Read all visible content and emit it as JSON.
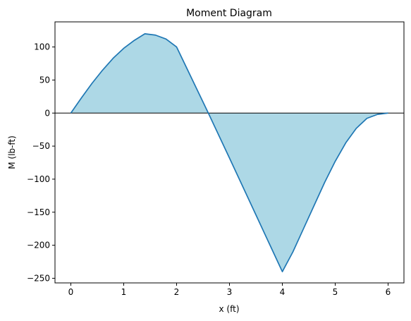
{
  "chart_data": {
    "type": "area",
    "title": "Moment Diagram",
    "xlabel": "x (ft)",
    "ylabel": "M (lb-ft)",
    "xlim": [
      -0.3,
      6.3
    ],
    "ylim": [
      -257,
      138
    ],
    "x_ticks": [
      "0",
      "1",
      "2",
      "3",
      "4",
      "5",
      "6"
    ],
    "y_ticks": [
      "100",
      "50",
      "0",
      "−50",
      "−100",
      "−150",
      "−200",
      "−250"
    ],
    "x_tick_values": [
      0,
      1,
      2,
      3,
      4,
      5,
      6
    ],
    "y_tick_values": [
      100,
      50,
      0,
      -50,
      -100,
      -150,
      -200,
      -250
    ],
    "grid": false,
    "baseline": 0,
    "colors": {
      "line": "#1f77b4",
      "fill": "#add8e6",
      "zero_line": "#000000"
    },
    "series": [
      {
        "x": [
          0,
          0.2,
          0.4,
          0.6,
          0.8,
          1.0,
          1.2,
          1.4,
          1.6,
          1.8,
          2.0,
          2.6,
          3.0,
          3.5,
          4.0,
          4.2,
          4.4,
          4.6,
          4.8,
          5.0,
          5.2,
          5.4,
          5.6,
          5.8,
          6.0
        ],
        "values": [
          0,
          23,
          45,
          65,
          83,
          98,
          110,
          120,
          118,
          112,
          100,
          0,
          -68,
          -154,
          -240,
          -210,
          -175,
          -140,
          -105,
          -73,
          -45,
          -23,
          -8,
          -2,
          0
        ]
      }
    ]
  }
}
